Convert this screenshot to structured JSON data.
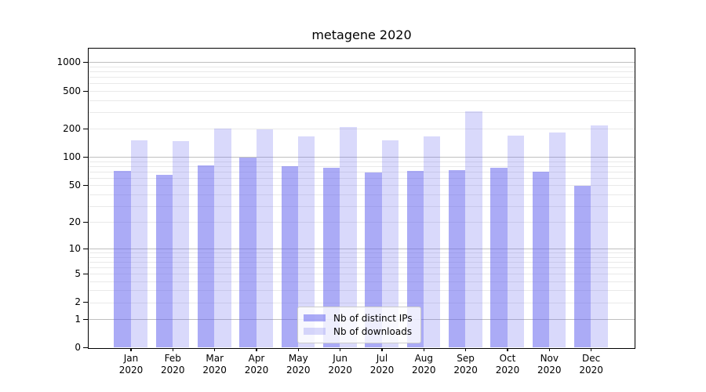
{
  "chart_data": {
    "type": "bar",
    "title": "metagene 2020",
    "categories": [
      "Jan",
      "Feb",
      "Mar",
      "Apr",
      "May",
      "Jun",
      "Jul",
      "Aug",
      "Sep",
      "Oct",
      "Nov",
      "Dec"
    ],
    "x_year_label": "2020",
    "series": [
      {
        "name": "Nb of distinct IPs",
        "color": "rgba(102,102,238,0.55)",
        "values": [
          71,
          65,
          82,
          99,
          80,
          77,
          68,
          71,
          73,
          77,
          70,
          49
        ]
      },
      {
        "name": "Nb of downloads",
        "color": "rgba(102,102,238,0.25)",
        "values": [
          150,
          147,
          201,
          195,
          165,
          209,
          150,
          164,
          304,
          168,
          183,
          217
        ]
      }
    ],
    "yscale": "log1p",
    "ylim": [
      0,
      1400
    ],
    "yticks": [
      0,
      1,
      2,
      5,
      10,
      20,
      50,
      100,
      200,
      500,
      1000
    ],
    "grid": {
      "major_lines": [
        1,
        10,
        100,
        1000
      ],
      "minor_subs": [
        2,
        3,
        4,
        5,
        6,
        7,
        8,
        9
      ],
      "minor_decades": [
        1,
        10,
        100
      ],
      "major_color": "#bfbfbf",
      "minor_color": "#e9e9e9"
    },
    "legend_position": "lower center",
    "axis_color": "#000000",
    "background": "#ffffff"
  }
}
